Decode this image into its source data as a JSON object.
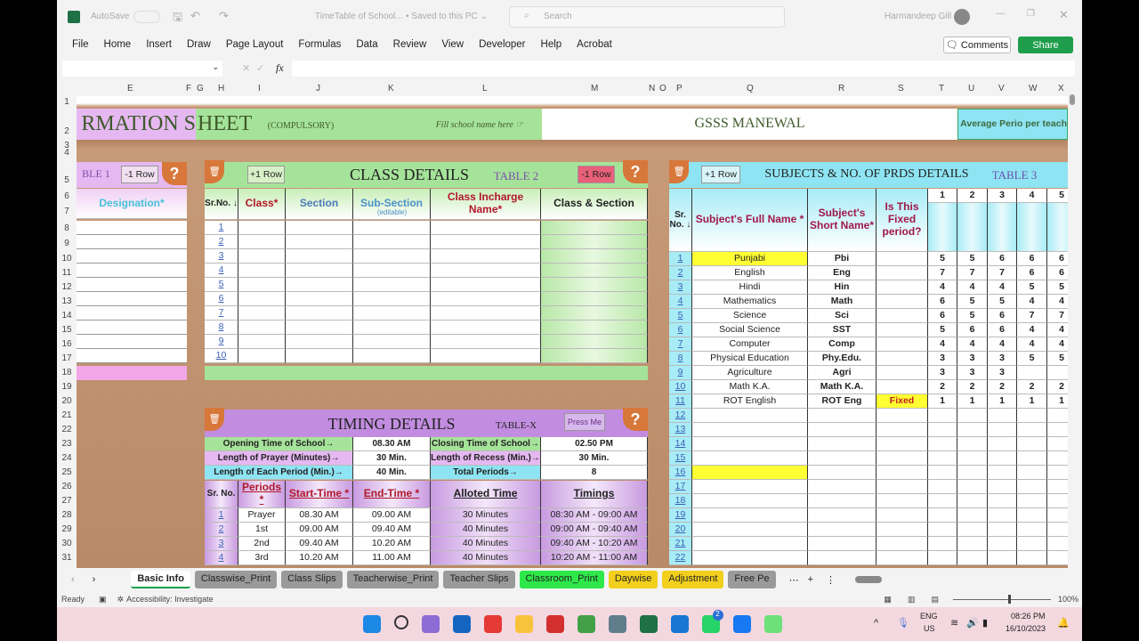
{
  "window": {
    "autosave": "AutoSave",
    "filename": "TimeTable of School...",
    "saved": "• Saved to this PC ⌄",
    "search_placeholder": "Search",
    "user": "Harmandeep Gill"
  },
  "ribbon": {
    "tabs": [
      "File",
      "Home",
      "Insert",
      "Draw",
      "Page Layout",
      "Formulas",
      "Data",
      "Review",
      "View",
      "Developer",
      "Help",
      "Acrobat"
    ],
    "comments": "Comments",
    "share": "Share"
  },
  "formula_bar": {
    "name_box": "",
    "fx": "fx",
    "value": ""
  },
  "columns": [
    [
      "E",
      147
    ],
    [
      "F",
      213
    ],
    [
      "G",
      225
    ],
    [
      "H",
      249
    ],
    [
      "I",
      294
    ],
    [
      "J",
      359
    ],
    [
      "K",
      440
    ],
    [
      "L",
      546
    ],
    [
      "M",
      668
    ],
    [
      "N",
      733
    ],
    [
      "O",
      745
    ],
    [
      "P",
      764
    ],
    [
      "Q",
      843
    ],
    [
      "R",
      946
    ],
    [
      "S",
      1013
    ],
    [
      "T",
      1059
    ],
    [
      "U",
      1092
    ],
    [
      "V",
      1126
    ],
    [
      "W",
      1160
    ],
    [
      "X",
      1193
    ]
  ],
  "rows": [
    [
      "1",
      115
    ],
    [
      "2",
      148
    ],
    [
      "3",
      164
    ],
    [
      "4",
      172
    ],
    [
      "5",
      203
    ],
    [
      "6",
      221
    ],
    [
      "7",
      238
    ],
    [
      "8",
      257
    ],
    [
      "9",
      274
    ],
    [
      "10",
      291
    ],
    [
      "11",
      307
    ],
    [
      "12",
      323
    ],
    [
      "13",
      339
    ],
    [
      "14",
      355
    ],
    [
      "15",
      371
    ],
    [
      "16",
      387
    ],
    [
      "17",
      403
    ],
    [
      "18",
      419
    ],
    [
      "19",
      435
    ],
    [
      "20",
      451
    ],
    [
      "21",
      467
    ],
    [
      "22",
      483
    ],
    [
      "23",
      499
    ],
    [
      "24",
      515
    ],
    [
      "25",
      531
    ],
    [
      "26",
      547
    ],
    [
      "27",
      563
    ],
    [
      "28",
      579
    ],
    [
      "29",
      595
    ],
    [
      "30",
      611
    ],
    [
      "31",
      627
    ]
  ],
  "banner": {
    "title_left": "RMATION S",
    "title_right": "HEET",
    "compulsory": "(COMPULSORY)",
    "fill_hint": "Fill school name here ☞",
    "school_name": "GSSS MANEWAL",
    "avg_periods": "Average Perio per teach"
  },
  "table1": {
    "label": "BLE 1",
    "minus_row": "-1 Row",
    "help": "?",
    "col": "Designation*"
  },
  "table2": {
    "title": "CLASS DETAILS",
    "label": "TABLE 2",
    "plus_row": "+1 Row",
    "minus_row": "-1 Row",
    "help": "?",
    "headers": [
      "Sr.No. ↓",
      "Class*",
      "Section",
      "Sub-Section",
      "Class Incharge Name*",
      "Class & Section"
    ],
    "sub_note": "(editable)",
    "sr": [
      "1",
      "2",
      "3",
      "4",
      "5",
      "6",
      "7",
      "8",
      "9",
      "10"
    ]
  },
  "timing": {
    "title": "TIMING DETAILS",
    "label": "TABLE-X",
    "press": "Press Me",
    "help": "?",
    "info": [
      [
        "Opening Time of School→",
        "08.30 AM",
        "Closing Time of School→",
        "02.50 PM"
      ],
      [
        "Length of Prayer (Minutes)→",
        "30 Min.",
        "Length of Recess (Min.)→",
        "30 Min."
      ],
      [
        "Length of Each Period (Min.)→",
        "40 Min.",
        "Total Periods→",
        "8"
      ]
    ],
    "headers": [
      "Sr. No.",
      "Periods *",
      "Start-Time *",
      "End-Time *",
      "Alloted Time",
      "Timings"
    ],
    "rows": [
      [
        "1",
        "Prayer",
        "08.30 AM",
        "09.00 AM",
        "30 Minutes",
        "08:30 AM - 09:00 AM"
      ],
      [
        "2",
        "1st",
        "09.00 AM",
        "09.40 AM",
        "40 Minutes",
        "09:00 AM - 09:40 AM"
      ],
      [
        "3",
        "2nd",
        "09.40 AM",
        "10.20 AM",
        "40 Minutes",
        "09:40 AM - 10:20 AM"
      ],
      [
        "4",
        "3rd",
        "10.20 AM",
        "11.00 AM",
        "40 Minutes",
        "10:20 AM - 11:00 AM"
      ]
    ]
  },
  "table3": {
    "title": "SUBJECTS & NO. OF PRDS DETAILS",
    "label": "TABLE 3",
    "plus_row": "+1 Row",
    "headers": [
      "Sr. No. ↓",
      "Subject's Full Name *",
      "Subject's Short Name*",
      "Is This Fixed period?"
    ],
    "period_cols": [
      "1",
      "2",
      "3",
      "4",
      "5"
    ],
    "rows": [
      [
        "1",
        "Punjabi",
        "Pbi",
        "",
        [
          "5",
          "5",
          "6",
          "6",
          "6"
        ]
      ],
      [
        "2",
        "English",
        "Eng",
        "",
        [
          "7",
          "7",
          "7",
          "6",
          "6"
        ]
      ],
      [
        "3",
        "Hindi",
        "Hin",
        "",
        [
          "4",
          "4",
          "4",
          "5",
          "5"
        ]
      ],
      [
        "4",
        "Mathematics",
        "Math",
        "",
        [
          "6",
          "5",
          "5",
          "4",
          "4"
        ]
      ],
      [
        "5",
        "Science",
        "Sci",
        "",
        [
          "6",
          "5",
          "6",
          "7",
          "7"
        ]
      ],
      [
        "6",
        "Social Science",
        "SST",
        "",
        [
          "5",
          "6",
          "6",
          "4",
          "4"
        ]
      ],
      [
        "7",
        "Computer",
        "Comp",
        "",
        [
          "4",
          "4",
          "4",
          "4",
          "4"
        ]
      ],
      [
        "8",
        "Physical Education",
        "Phy.Edu.",
        "",
        [
          "3",
          "3",
          "3",
          "5",
          "5"
        ]
      ],
      [
        "9",
        "Agriculture",
        "Agri",
        "",
        [
          "3",
          "3",
          "3",
          "",
          ""
        ]
      ],
      [
        "10",
        "Math K.A.",
        "Math K.A.",
        "",
        [
          "2",
          "2",
          "2",
          "2",
          "2"
        ]
      ],
      [
        "11",
        "ROT English",
        "ROT Eng",
        "Fixed",
        [
          "1",
          "1",
          "1",
          "1",
          "1"
        ]
      ],
      [
        "12",
        "",
        "",
        "",
        []
      ],
      [
        "13",
        "",
        "",
        "",
        []
      ],
      [
        "14",
        "",
        "",
        "",
        []
      ],
      [
        "15",
        "",
        "",
        "",
        []
      ],
      [
        "16",
        "",
        "",
        "",
        []
      ],
      [
        "17",
        "",
        "",
        "",
        []
      ],
      [
        "18",
        "",
        "",
        "",
        []
      ],
      [
        "19",
        "",
        "",
        "",
        []
      ],
      [
        "20",
        "",
        "",
        "",
        []
      ],
      [
        "21",
        "",
        "",
        "",
        []
      ],
      [
        "22",
        "",
        "",
        "",
        []
      ]
    ]
  },
  "sheet_tabs": [
    {
      "label": "Basic Info",
      "color": "#ffffff"
    },
    {
      "label": "Classwise_Print",
      "color": "#9a9a9a"
    },
    {
      "label": "Class Slips",
      "color": "#9a9a9a"
    },
    {
      "label": "Teacherwise_Print",
      "color": "#9a9a9a"
    },
    {
      "label": "Teacher Slips",
      "color": "#9a9a9a"
    },
    {
      "label": "Classroom_Print",
      "color": "#2ee84a"
    },
    {
      "label": "Daywise",
      "color": "#f2cf1c"
    },
    {
      "label": "Adjustment",
      "color": "#f2cf1c"
    },
    {
      "label": "Free Pe",
      "color": "#9a9a9a"
    }
  ],
  "status": {
    "ready": "Ready",
    "accessibility": "Accessibility: Investigate",
    "zoom": "100%"
  },
  "taskbar": {
    "lang": "ENG",
    "region": "US",
    "time": "08:26 PM",
    "date": "16/10/2023",
    "badge": "2",
    "icons": [
      "windows-icon",
      "search-icon",
      "copilot-icon",
      "store-icon",
      "youtube-icon",
      "file-explorer-icon",
      "app-red-icon",
      "chrome-icon",
      "notepad-icon",
      "excel-icon",
      "edge-icon",
      "whatsapp-icon",
      "facebook-icon",
      "app-green-icon"
    ],
    "icon_colors": [
      "#1e88e5",
      "#333",
      "#8e6cd6",
      "#1565c0",
      "#e53935",
      "#f9c23c",
      "#d32f2f",
      "#43a047",
      "#607d8b",
      "#1e7145",
      "#1976d2",
      "#25d366",
      "#1877f2",
      "#6ee07a"
    ]
  },
  "colors": {
    "green": "#a6e39a",
    "purple": "#e6b8f2",
    "cyan": "#8ee4f2",
    "violet": "#c28de0",
    "brown": "#8d5a36",
    "yellow": "#ffff33",
    "excel_green": "#1e7145"
  }
}
